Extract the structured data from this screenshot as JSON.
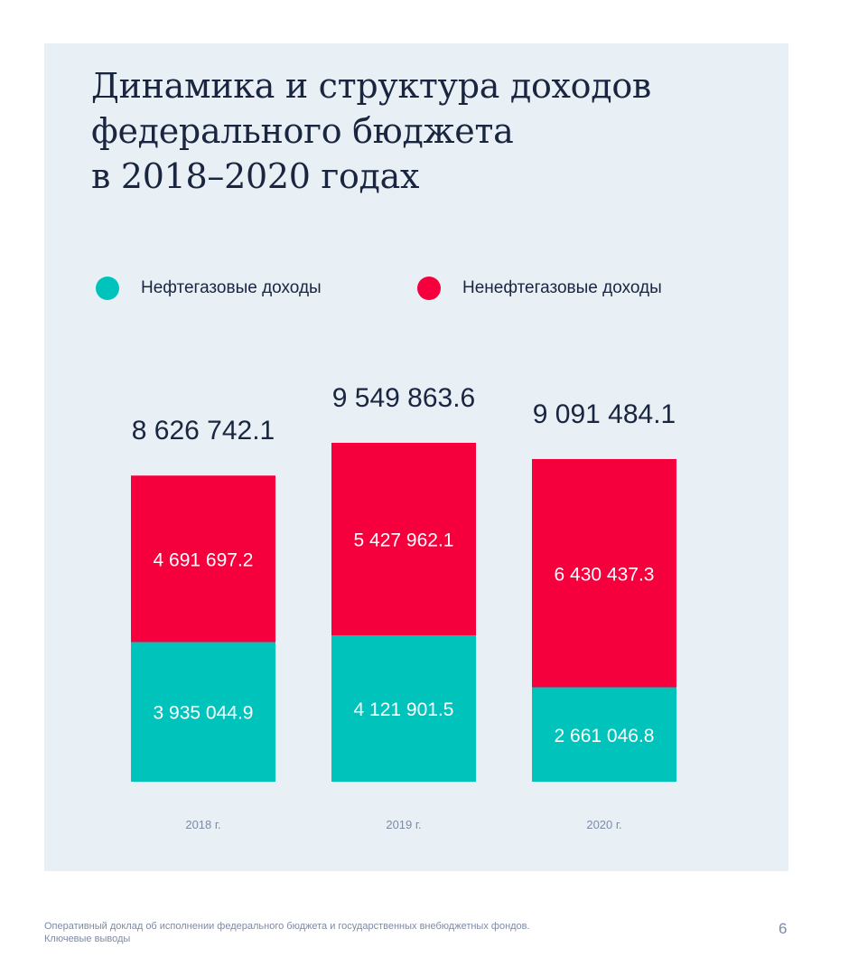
{
  "title_lines": [
    "Динамика и структура доходов",
    "федерального бюджета",
    "в 2018–2020 годах"
  ],
  "legend": [
    {
      "label": "Нефтегазовые доходы",
      "color": "#00c4bc"
    },
    {
      "label": "Ненефтегазовые доходы",
      "color": "#f5003d"
    }
  ],
  "chart_data": {
    "type": "bar",
    "stacked": true,
    "categories": [
      "2018 г.",
      "2019 г.",
      "2020 г."
    ],
    "series": [
      {
        "name": "Нефтегазовые доходы",
        "color": "#00c4bc",
        "values": [
          3935044.9,
          4121901.5,
          2661046.8
        ],
        "labels": [
          "3 935 044.9",
          "4 121 901.5",
          "2 661 046.8"
        ]
      },
      {
        "name": "Ненефтегазовые доходы",
        "color": "#f5003d",
        "values": [
          4691697.2,
          5427962.1,
          6430437.3
        ],
        "labels": [
          "4 691 697.2",
          "5 427 962.1",
          "6 430 437.3"
        ]
      }
    ],
    "totals": [
      8626742.1,
      9549863.6,
      9091484.1
    ],
    "total_labels": [
      "8 626 742.1",
      "9 549 863.6",
      "9 091 484.1"
    ],
    "title": "Динамика и структура доходов федерального бюджета в 2018–2020 годах",
    "legend_position": "top",
    "grid": false
  },
  "footer": {
    "line1": "Оперативный доклад об исполнении федерального бюджета и государственных внебюджетных фондов.",
    "line2": "Ключевые выводы",
    "page_number": "6"
  }
}
